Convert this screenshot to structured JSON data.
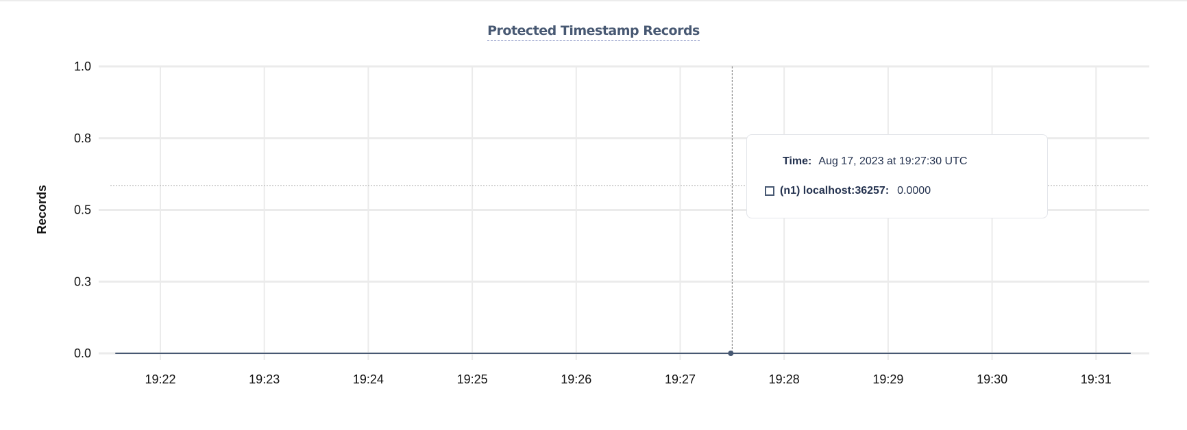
{
  "chart_data": {
    "type": "line",
    "title": "Protected Timestamp Records",
    "ylabel": "Records",
    "xlabel": "",
    "ylim": [
      0,
      1
    ],
    "yticks": [
      1.0,
      0.75,
      0.5,
      0.25,
      0.0
    ],
    "ytick_labels": [
      "1.0",
      "0.8",
      "0.5",
      "0.3",
      "0.0"
    ],
    "xtick_labels": [
      "19:22",
      "19:23",
      "19:24",
      "19:25",
      "19:26",
      "19:27",
      "19:28",
      "19:29",
      "19:30",
      "19:31"
    ],
    "xlim": [
      "19:21:34",
      "19:31:40"
    ],
    "grid": true,
    "series": [
      {
        "name": "(n1) localhost:36257",
        "color": "#475872",
        "x": [
          "19:21:34",
          "19:31:20"
        ],
        "y": [
          0,
          0
        ]
      }
    ],
    "hover": {
      "x": "19:27:30",
      "y": 0
    }
  },
  "tooltip": {
    "time_label": "Time:",
    "time_value": "Aug 17, 2023 at 19:27:30 UTC",
    "series_label": "(n1) localhost:36257:",
    "series_value": "0.0000"
  }
}
